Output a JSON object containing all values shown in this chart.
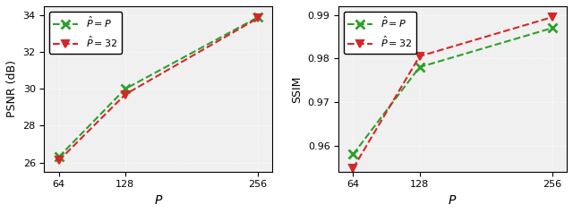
{
  "x": [
    64,
    128,
    256
  ],
  "psnr_green": [
    26.3,
    30.0,
    33.9
  ],
  "psnr_red": [
    26.1,
    29.7,
    33.85
  ],
  "ssim_green": [
    0.958,
    0.978,
    0.987
  ],
  "ssim_red": [
    0.9548,
    0.9805,
    0.9895
  ],
  "psnr_ylim": [
    25.5,
    34.5
  ],
  "psnr_yticks": [
    26,
    28,
    30,
    32,
    34
  ],
  "ssim_ylim": [
    0.954,
    0.992
  ],
  "ssim_yticks": [
    0.96,
    0.97,
    0.98,
    0.99
  ],
  "xticks": [
    64,
    128,
    256
  ],
  "xlabel": "$P$",
  "ylabel_left": "PSNR (dB)",
  "ylabel_right": "SSIM",
  "label_green": "$\\hat{P} = P$",
  "label_red": "$\\hat{P} = 32$",
  "color_green": "#2ca02c",
  "color_red": "#d62728",
  "background": "#f0f0f0"
}
